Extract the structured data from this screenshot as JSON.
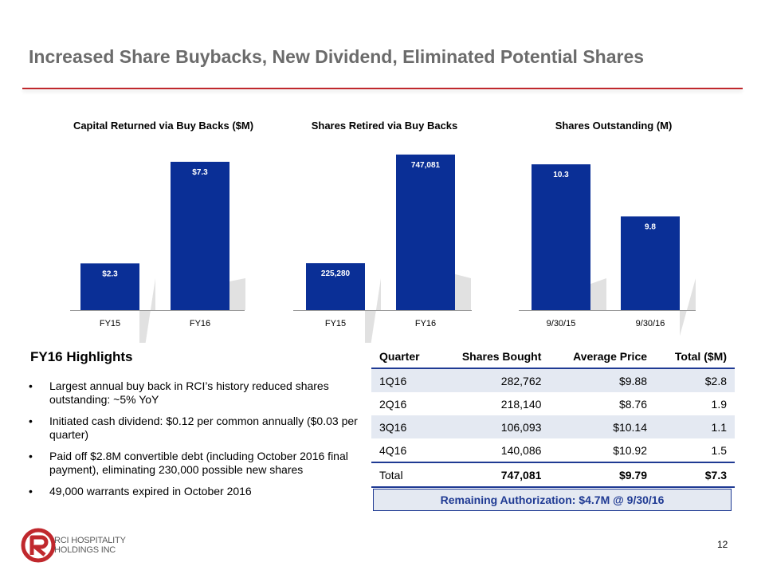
{
  "slide": {
    "title": "Increased Share Buybacks, New Dividend, Eliminated Potential Shares",
    "page_number": "12"
  },
  "colors": {
    "bar": "#0a2f96",
    "accent_rule": "#c0282d",
    "table_shade": "#e4e9f2"
  },
  "chart_data": [
    {
      "type": "bar",
      "title": "Capital Returned via Buy Backs ($M)",
      "categories": [
        "FY15",
        "FY16"
      ],
      "values": [
        2.3,
        7.3
      ],
      "labels": [
        "$2.3",
        "$7.3"
      ],
      "ylim": [
        0,
        8.2
      ]
    },
    {
      "type": "bar",
      "title": "Shares Retired via Buy Backs",
      "categories": [
        "FY15",
        "FY16"
      ],
      "values": [
        225280,
        747081
      ],
      "labels": [
        "225,280",
        "747,081"
      ],
      "ylim": [
        0,
        800000
      ]
    },
    {
      "type": "bar",
      "title": "Shares Outstanding (M)",
      "categories": [
        "9/30/15",
        "9/30/16"
      ],
      "values": [
        10.3,
        9.8
      ],
      "labels": [
        "10.3",
        "9.8"
      ],
      "ylim": [
        8.9,
        10.5
      ]
    }
  ],
  "highlights": {
    "title": "FY16 Highlights",
    "items": [
      "Largest annual buy back in RCI’s history reduced shares outstanding: ~5% YoY",
      "Initiated cash dividend: $0.12 per common annually ($0.03 per quarter)",
      "Paid off $2.8M convertible debt (including October 2016 final payment), eliminating 230,000 possible new shares",
      "49,000 warrants expired in October 2016"
    ]
  },
  "table": {
    "headers": [
      "Quarter",
      "Shares Bought",
      "Average Price",
      "Total ($M)"
    ],
    "rows": [
      [
        "1Q16",
        "282,762",
        "$9.88",
        "$2.8"
      ],
      [
        "2Q16",
        "218,140",
        "$8.76",
        "1.9"
      ],
      [
        "3Q16",
        "106,093",
        "$10.14",
        "1.1"
      ],
      [
        "4Q16",
        "140,086",
        "$10.92",
        "1.5"
      ]
    ],
    "total": [
      "Total",
      "747,081",
      "$9.79",
      "$7.3"
    ]
  },
  "remaining_authorization": "Remaining Authorization: $4.7M @ 9/30/16",
  "logo": {
    "line1": "RCI HOSPITALITY",
    "line2": "HOLDINGS INC"
  }
}
